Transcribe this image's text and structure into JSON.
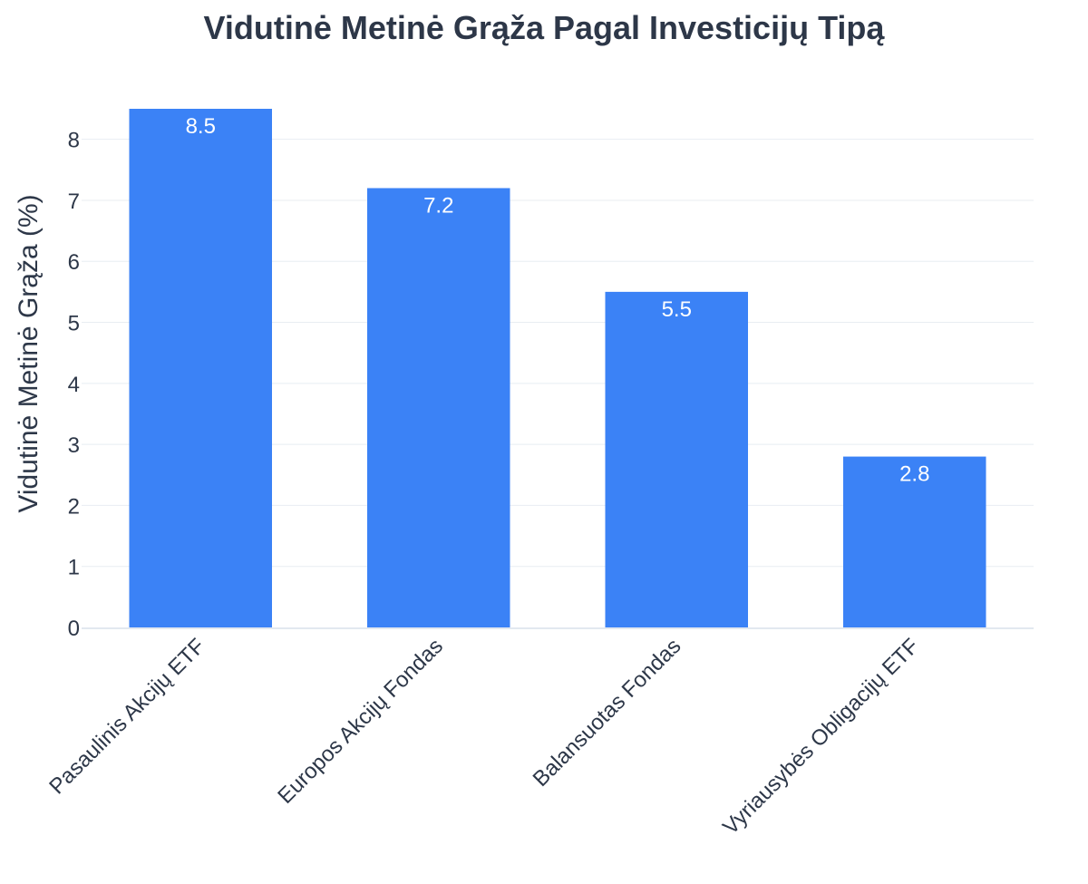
{
  "chart_data": {
    "type": "bar",
    "title": "Vidutinė Metinė Grąža Pagal Investicijų Tipą",
    "xlabel": "",
    "ylabel": "Vidutinė Metinė Grąža (%)",
    "categories": [
      "Pasaulinis Akcijų ETF",
      "Europos Akcijų Fondas",
      "Balansuotas Fondas",
      "Vyriausybės Obligacijų ETF"
    ],
    "values": [
      8.5,
      7.2,
      5.5,
      2.8
    ],
    "data_labels": [
      "8.5",
      "7.2",
      "5.5",
      "2.8"
    ],
    "y_ticks": [
      0,
      1,
      2,
      3,
      4,
      5,
      6,
      7,
      8
    ],
    "ylim": [
      0,
      8.5
    ],
    "grid": true,
    "legend": "none",
    "colors": {
      "bar": "#3b82f6",
      "bar_label": "#ffffff",
      "text": "#2d3748",
      "grid": "#e8edf2",
      "axis": "#e2e8f0"
    }
  }
}
